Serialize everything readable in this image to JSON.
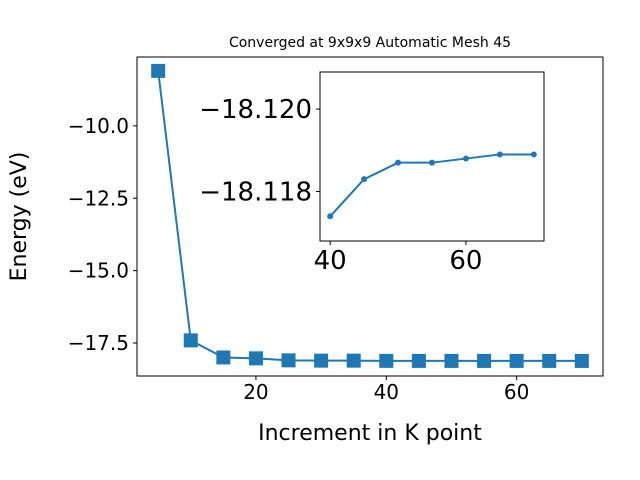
{
  "chart_data": [
    {
      "type": "line",
      "title": "Converged at 9x9x9 Automatic Mesh 45",
      "x_label": "Increment in K point",
      "y_label": "Energy (eV)",
      "x": [
        5,
        10,
        15,
        20,
        25,
        30,
        35,
        40,
        45,
        50,
        55,
        60,
        65,
        70
      ],
      "series": [
        {
          "color": "#1f77b4",
          "marker": "square",
          "values": [
            -8.1,
            -17.41,
            -18.0,
            -18.03,
            -18.1,
            -18.11,
            -18.11,
            -18.1174,
            -18.1183,
            -18.1187,
            -18.1187,
            -18.1188,
            -18.1189,
            -18.1189
          ]
        }
      ],
      "xlim": [
        1.75,
        73.25
      ],
      "xticks": [
        20,
        40,
        60
      ],
      "ylim": [
        -18.64,
        -7.62
      ],
      "yticks": [
        {
          "value": -10.0,
          "label": "−10.0"
        },
        {
          "value": -12.5,
          "label": "−12.5"
        },
        {
          "value": -15.0,
          "label": "−15.0"
        },
        {
          "value": -17.5,
          "label": "−17.5"
        }
      ]
    },
    {
      "type": "line",
      "x": [
        40,
        45,
        50,
        55,
        60,
        65,
        70
      ],
      "series": [
        {
          "color": "#1f77b4",
          "marker": "circle",
          "values": [
            -18.1174,
            -18.1183,
            -18.1187,
            -18.1187,
            -18.1188,
            -18.1189,
            -18.1189
          ]
        }
      ],
      "xlim": [
        38.5,
        71.5
      ],
      "xticks": [
        40,
        60
      ],
      "ylim": [
        -18.1168,
        -18.1209
      ],
      "yticks": [
        {
          "value": -18.12,
          "label": "−18.120"
        },
        {
          "value": -18.118,
          "label": "−18.118"
        }
      ]
    }
  ]
}
